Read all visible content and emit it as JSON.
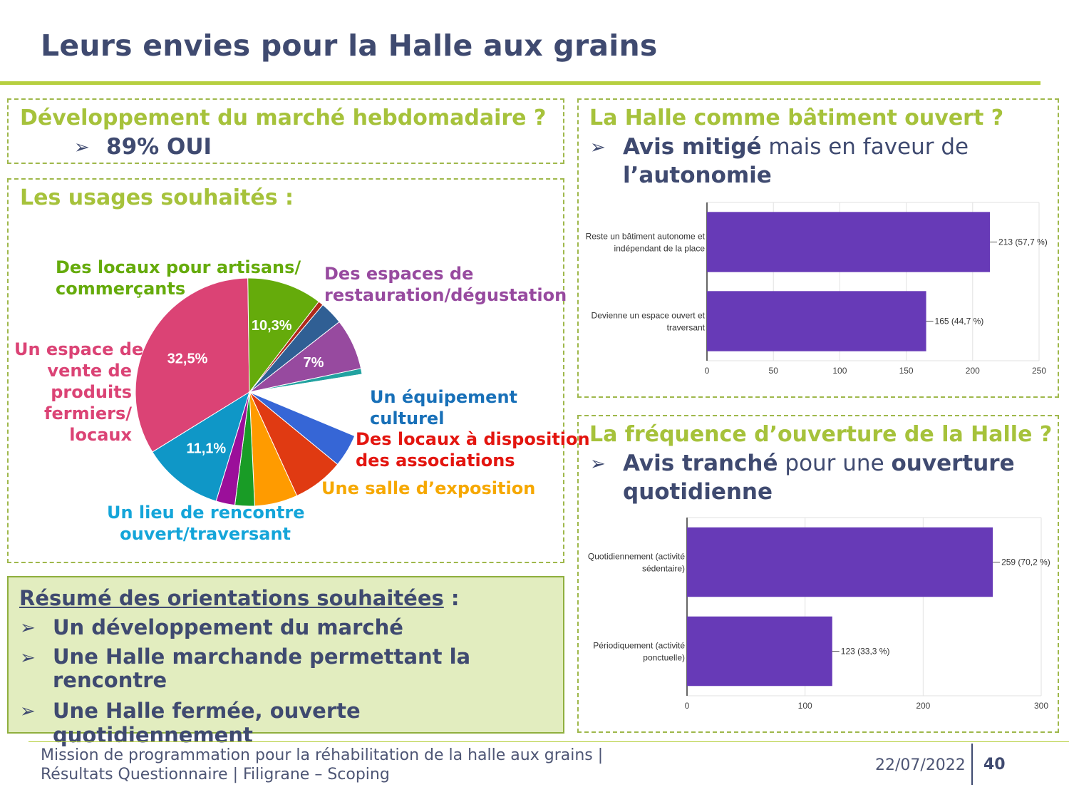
{
  "title": "Leurs envies pour la Halle aux grains",
  "market": {
    "heading": "Développement du marché hebdomadaire ?",
    "bullet": "89% OUI"
  },
  "usages": {
    "heading": "Les usages souhaités :"
  },
  "pie_labels": {
    "artisans": "Des locaux pour artisans/\ncommerçants",
    "restauration": "Des espaces de\nrestauration/dégustation",
    "vente": "Un espace de\nvente de\nproduits\nfermiers/\nlocaux",
    "culturel": "Un équipement\nculturel",
    "associations": "Des locaux à disposition\ndes associations",
    "exposition": "Une salle d’exposition",
    "rencontre": "Un lieu de rencontre\nouvert/traversant"
  },
  "building": {
    "heading": "La Halle comme bâtiment ouvert ?",
    "bullet_bold": "Avis mitigé",
    "bullet_rest": " mais en faveur de",
    "bullet_line2": "l’autonomie"
  },
  "frequency": {
    "heading": "La fréquence d’ouverture de la Halle ?",
    "bullet_bold": "Avis tranché",
    "bullet_mid": " pour une ",
    "bullet_bold2": "ouverture",
    "bullet_line2": "quotidienne"
  },
  "summary": {
    "heading": "Résumé des orientations souhaitées",
    "heading_suffix": " :",
    "items": [
      "Un développement du marché",
      "Une Halle marchande permettant la\nrencontre",
      "Une Halle fermée, ouverte quotidiennement"
    ]
  },
  "arrow_icon": "➢",
  "footer": {
    "text": "Mission de programmation pour la réhabilitation de la halle aux grains | Résultats Questionnaire | Filigrane – Scoping",
    "date": "22/07/2022",
    "page": "40"
  },
  "colors": {
    "accent_green": "#a6c23b",
    "dark_blue": "#3f4a70",
    "bar_purple": "#673ab7"
  },
  "chart_data": [
    {
      "type": "pie",
      "slices": [
        {
          "label": "Un espace de vente de produits fermiers/locaux",
          "value": 32.5,
          "display": "32,5%",
          "color": "#db4375"
        },
        {
          "label": "Des locaux pour artisans/commerçants",
          "value": 10.3,
          "display": "10,3%",
          "color": "#65ab0b"
        },
        {
          "label": "",
          "value": 0.7,
          "display": "",
          "color": "#b0291b"
        },
        {
          "label": "",
          "value": 3.2,
          "display": "",
          "color": "#305f94"
        },
        {
          "label": "Des espaces de restauration/dégustation",
          "value": 7.0,
          "display": "7%",
          "color": "#974a9f"
        },
        {
          "label": "",
          "value": 0.8,
          "display": "",
          "color": "#22a2a0"
        },
        {
          "label": "",
          "value": 8.5,
          "display": "",
          "color": "#ffffff"
        },
        {
          "label": "Un équipement culturel",
          "value": 4.5,
          "display": "",
          "color": "#3666d6"
        },
        {
          "label": "Des locaux à disposition des associations",
          "value": 7.0,
          "display": "",
          "color": "#e03a12"
        },
        {
          "label": "Une salle d’exposition",
          "value": 5.9,
          "display": "",
          "color": "#ff9b00"
        },
        {
          "label": "",
          "value": 2.7,
          "display": "",
          "color": "#199c26"
        },
        {
          "label": "",
          "value": 2.6,
          "display": "",
          "color": "#9b0f9a"
        },
        {
          "label": "Un lieu de rencontre ouvert/traversant",
          "value": 11.1,
          "display": "11,1%",
          "color": "#0f97c7"
        }
      ]
    },
    {
      "type": "bar",
      "orientation": "horizontal",
      "categories": [
        "Reste un bâtiment autonome et indépendant de la place",
        "Devienne un espace ouvert et traversant"
      ],
      "category_lines": [
        [
          "Reste un bâtiment autonome et",
          "indépendant de la place"
        ],
        [
          "Devienne un espace ouvert et",
          "traversant"
        ]
      ],
      "values": [
        213,
        165
      ],
      "value_labels": [
        "213 (57,7 %)",
        "165 (44,7 %)"
      ],
      "xlim": [
        0,
        250
      ],
      "ticks": [
        0,
        50,
        100,
        150,
        200,
        250
      ],
      "color": "#673ab7",
      "grid": true
    },
    {
      "type": "bar",
      "orientation": "horizontal",
      "categories": [
        "Quotidiennement (activité sédentaire)",
        "Périodiquement (activité ponctuelle)"
      ],
      "category_lines": [
        [
          "Quotidiennement (activité",
          "sédentaire)"
        ],
        [
          "Périodiquement (activité",
          "ponctuelle)"
        ]
      ],
      "values": [
        259,
        123
      ],
      "value_labels": [
        "259 (70,2 %)",
        "123 (33,3 %)"
      ],
      "xlim": [
        0,
        300
      ],
      "ticks": [
        0,
        100,
        200,
        300
      ],
      "color": "#673ab7",
      "grid": true
    }
  ]
}
